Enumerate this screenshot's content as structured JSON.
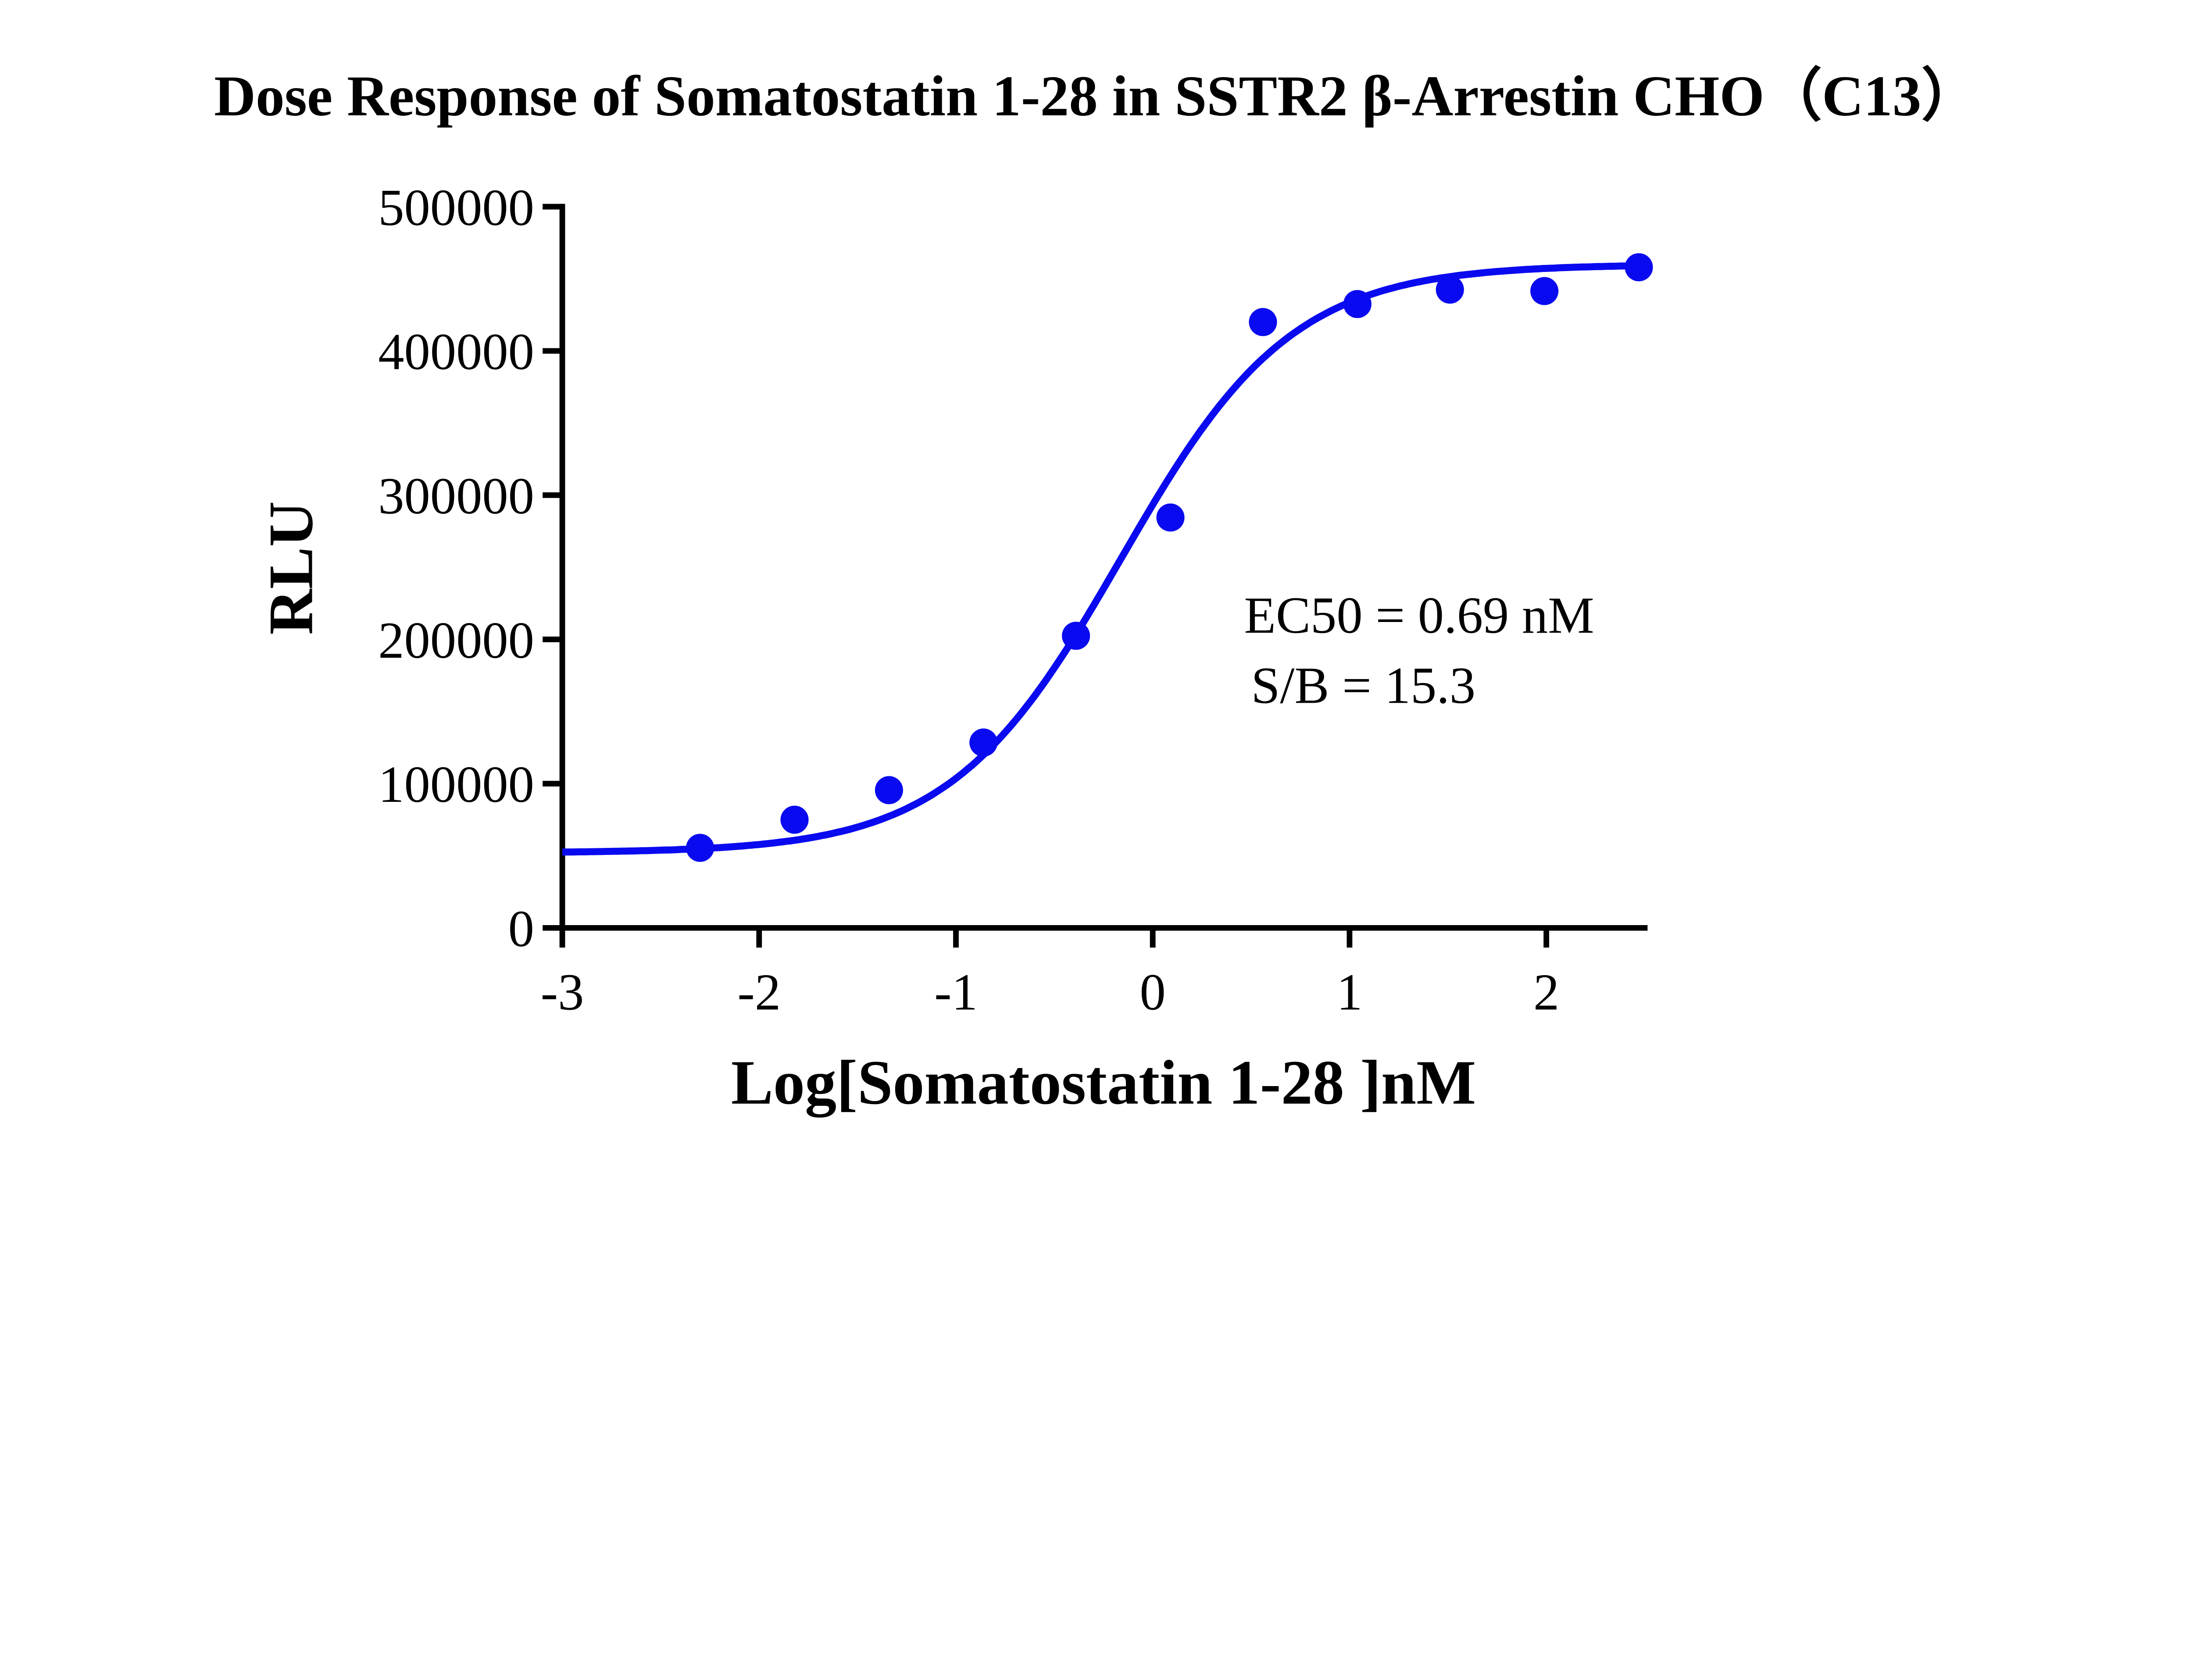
{
  "chart_data": {
    "type": "scatter",
    "title": "Dose Response of Somatostatin 1-28 in SSTR2 β-Arrestin CHO（C13）",
    "xlabel": "Log[Somatostatin 1-28 ]nM",
    "ylabel": "RLU",
    "xlim": [
      -3,
      2.5
    ],
    "ylim": [
      0,
      500000
    ],
    "x_ticks": [
      -3,
      -2,
      -1,
      0,
      1,
      2
    ],
    "x_tick_labels": [
      "-3",
      "-2",
      "-1",
      "0",
      "1",
      "2"
    ],
    "y_ticks": [
      0,
      100000,
      200000,
      300000,
      400000,
      500000
    ],
    "y_tick_labels": [
      "0",
      "100000",
      "200000",
      "300000",
      "400000",
      "500000"
    ],
    "grid": false,
    "color": "#0a0af0",
    "points": {
      "x": [
        -2.3,
        -1.82,
        -1.34,
        -0.86,
        -0.39,
        0.09,
        0.56,
        1.04,
        1.51,
        1.99,
        2.47
      ],
      "y": [
        55500,
        75000,
        95500,
        128500,
        202500,
        284500,
        420000,
        432500,
        442500,
        441500,
        458000
      ]
    },
    "fit": {
      "model": "4PL",
      "bottom": 52000,
      "top": 460000,
      "logEC50": -0.161,
      "hill": 1.0
    },
    "annotations": [
      "EC50 = 0.69 nM",
      "S/B = 15.3"
    ]
  }
}
